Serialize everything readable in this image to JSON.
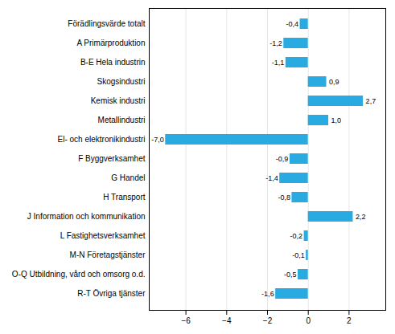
{
  "chart_data": {
    "type": "bar",
    "orientation": "horizontal",
    "categories": [
      "Förädlingsvärde totalt",
      "A Primärproduktion",
      "B-E Hela industrin",
      "Skogsindustri",
      "Kemisk industri",
      "Metallindustri",
      "El- och elektronikindustri",
      "F Byggverksamhet",
      "G Handel",
      "H Transport",
      "J Information och kommunikation",
      "L Fastighetsverksamhet",
      "M-N Företagstjänster",
      "O-Q Utbildning, vård och omsorg o.d.",
      "R-T Övriga tjänster"
    ],
    "values": [
      -0.4,
      -1.2,
      -1.1,
      0.9,
      2.7,
      1.0,
      -7.0,
      -0.9,
      -1.4,
      -0.8,
      2.2,
      -0.2,
      -0.1,
      -0.5,
      -1.6
    ],
    "value_labels": [
      "-0,4",
      "-1,2",
      "-1,1",
      "0,9",
      "2,7",
      "1,0",
      "-7,0",
      "-0,9",
      "-1,4",
      "-0,8",
      "2,2",
      "-0,2",
      "-0,1",
      "-0,5",
      "-1,6"
    ],
    "data_labels": true,
    "color": "#29abe2",
    "xlim": [
      -7.8,
      3.8
    ],
    "xticks": [
      -6,
      -4,
      -2,
      0,
      2
    ],
    "grid": true
  }
}
